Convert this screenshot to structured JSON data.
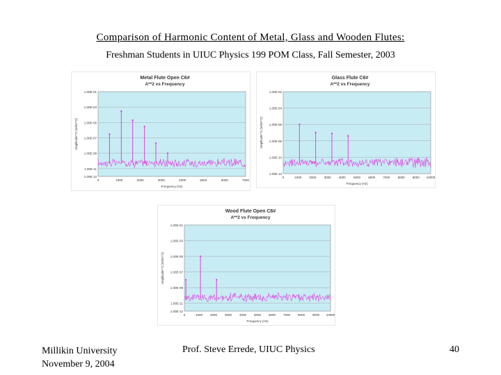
{
  "slide": {
    "title": "Comparison of Harmonic Content of Metal, Glass and Wooden Flutes:",
    "subtitle": "Freshman Students in UIUC Physics 199 POM Class, Fall Semester, 2003",
    "footer": {
      "institution": "Millikin University",
      "date": "November 9, 2004",
      "presenter": "Prof. Steve Errede, UIUC Physics",
      "page_number": "40"
    }
  },
  "colors": {
    "plot_area": "#c8ecf4",
    "series": "#e040e0",
    "grid": "#a0a8b0"
  },
  "chart_data": [
    {
      "type": "line",
      "title": "Metal Flute Open C6#",
      "subtitle": "A**2 vs Frequency",
      "xlabel": "Frequency (Hz)",
      "ylabel": "Amplitude**2 (Volts**2)",
      "yscale": "log",
      "xlim": [
        0,
        7000
      ],
      "ylim": [
        1e-12,
        0.1
      ],
      "xticks": [
        "0",
        "1000",
        "2000",
        "3000",
        "4000",
        "5000",
        "6000",
        "7000"
      ],
      "yticks": [
        "1.00E-01",
        "1.00E-03",
        "1.00E-05",
        "1.00E-07",
        "1.00E-09",
        "1.00E-11",
        "1.00E-12"
      ],
      "grid": true,
      "peaks": [
        {
          "x": 540,
          "y": 3e-07
        },
        {
          "x": 1100,
          "y": 0.0003
        },
        {
          "x": 1640,
          "y": 2e-05
        },
        {
          "x": 2200,
          "y": 3e-06
        },
        {
          "x": 2740,
          "y": 2e-08
        },
        {
          "x": 3300,
          "y": 1e-09
        }
      ],
      "noise_floor": [
        3e-11,
        1e-10
      ]
    },
    {
      "type": "line",
      "title": "Glass Flute C6#",
      "subtitle": "A**2 vs Frequency",
      "xlabel": "Frequency (Hz)",
      "ylabel": "Amplitude**2 (Volts**2)",
      "yscale": "log",
      "xlim": [
        0,
        10000
      ],
      "ylim": [
        1e-12,
        0.01
      ],
      "xticks": [
        "0",
        "1000",
        "2000",
        "3000",
        "4000",
        "5000",
        "6000",
        "7000",
        "8000",
        "9000",
        "10000"
      ],
      "yticks": [
        "1.00E-02",
        "1.00E-04",
        "1.00E-06",
        "1.00E-08",
        "1.00E-10",
        "1.00E-12"
      ],
      "grid": true,
      "peaks": [
        {
          "x": 1100,
          "y": 1e-06
        },
        {
          "x": 2200,
          "y": 1e-07
        },
        {
          "x": 3300,
          "y": 8e-08
        },
        {
          "x": 4400,
          "y": 4e-08
        }
      ],
      "noise_floor": [
        1e-11,
        5e-11
      ]
    },
    {
      "type": "line",
      "title": "Wood Flute Open C6#",
      "subtitle": "A**2 vs Frequency",
      "xlabel": "Frequency (Hz)",
      "ylabel": "Amplitude**2 (Volts**2)",
      "yscale": "log",
      "xlim": [
        0,
        10000
      ],
      "ylim": [
        1e-12,
        0.1
      ],
      "xticks": [
        "0",
        "1000",
        "2000",
        "3000",
        "4000",
        "5000",
        "6000",
        "7000",
        "8000",
        "9000",
        "10000"
      ],
      "yticks": [
        "1.00E-01",
        "1.00E-03",
        "1.00E-05",
        "1.00E-07",
        "1.00E-09",
        "1.00E-11",
        "1.00E-12"
      ],
      "grid": true,
      "peaks": [
        {
          "x": 100,
          "y": 1e-08
        },
        {
          "x": 1100,
          "y": 1e-05
        },
        {
          "x": 2200,
          "y": 1e-08
        }
      ],
      "noise_floor": [
        3e-11,
        1e-10
      ]
    }
  ]
}
